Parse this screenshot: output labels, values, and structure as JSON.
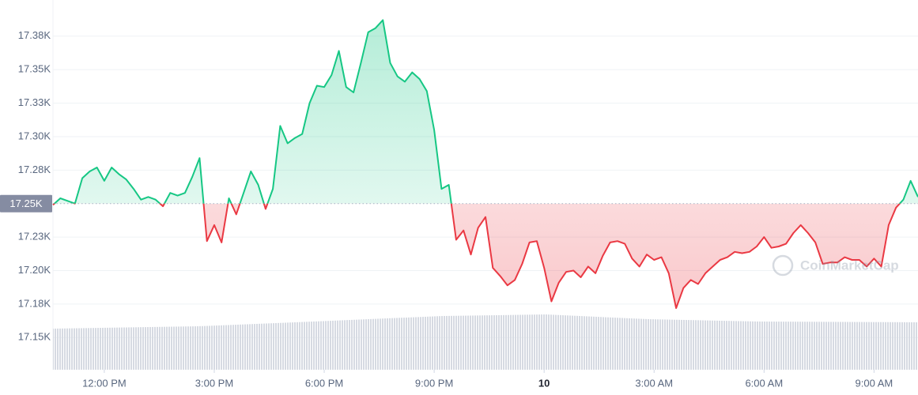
{
  "chart_data": {
    "type": "line",
    "watermark": "CoinMarketCap",
    "up_color": "#16c784",
    "down_color": "#ea3943",
    "baseline": {
      "value": 17250,
      "label": "17.25K"
    },
    "xlim": [
      10.6,
      34.2
    ],
    "xticks": [
      {
        "value": 12,
        "label": "12:00 PM"
      },
      {
        "value": 15,
        "label": "3:00 PM"
      },
      {
        "value": 18,
        "label": "6:00 PM"
      },
      {
        "value": 21,
        "label": "9:00 PM"
      },
      {
        "value": 24,
        "label": "10"
      },
      {
        "value": 27,
        "label": "3:00 AM"
      },
      {
        "value": 30,
        "label": "6:00 AM"
      },
      {
        "value": 33,
        "label": "9:00 AM"
      }
    ],
    "ylim": [
      17126,
      17402
    ],
    "yticks": [
      {
        "value": 17150,
        "label": "17.15K"
      },
      {
        "value": 17175,
        "label": "17.18K"
      },
      {
        "value": 17200,
        "label": "17.20K"
      },
      {
        "value": 17225,
        "label": "17.23K"
      },
      {
        "value": 17275,
        "label": "17.28K"
      },
      {
        "value": 17300,
        "label": "17.30K"
      },
      {
        "value": 17325,
        "label": "17.33K"
      },
      {
        "value": 17350,
        "label": "17.35K"
      },
      {
        "value": 17375,
        "label": "17.38K"
      }
    ],
    "grid": true,
    "x": [
      10.6,
      10.8,
      11,
      11.2,
      11.4,
      11.6,
      11.8,
      12,
      12.2,
      12.4,
      12.6,
      12.8,
      13,
      13.2,
      13.4,
      13.6,
      13.8,
      14,
      14.2,
      14.4,
      14.6,
      14.8,
      15,
      15.2,
      15.4,
      15.6,
      15.8,
      16,
      16.2,
      16.4,
      16.6,
      16.8,
      17,
      17.2,
      17.4,
      17.6,
      17.8,
      18,
      18.2,
      18.4,
      18.6,
      18.8,
      19,
      19.2,
      19.4,
      19.6,
      19.8,
      20,
      20.2,
      20.4,
      20.6,
      20.8,
      21,
      21.2,
      21.4,
      21.6,
      21.8,
      22,
      22.2,
      22.4,
      22.6,
      22.8,
      23,
      23.2,
      23.4,
      23.6,
      23.8,
      24,
      24.2,
      24.4,
      24.6,
      24.8,
      25,
      25.2,
      25.4,
      25.6,
      25.8,
      26,
      26.2,
      26.4,
      26.6,
      26.8,
      27,
      27.2,
      27.4,
      27.6,
      27.8,
      28,
      28.2,
      28.4,
      28.6,
      28.8,
      29,
      29.2,
      29.4,
      29.6,
      29.8,
      30,
      30.2,
      30.4,
      30.6,
      30.8,
      31,
      31.2,
      31.4,
      31.6,
      31.8,
      32,
      32.2,
      32.4,
      32.6,
      32.8,
      33,
      33.2,
      33.4,
      33.6,
      33.8,
      34,
      34.2
    ],
    "values": [
      17249,
      17254,
      17252,
      17250,
      17269,
      17274,
      17277,
      17267,
      17277,
      17272,
      17268,
      17261,
      17253,
      17255,
      17253,
      17248,
      17258,
      17256,
      17258,
      17270,
      17284,
      17222,
      17234,
      17221,
      17254,
      17242,
      17258,
      17274,
      17264,
      17246,
      17261,
      17308,
      17295,
      17299,
      17302,
      17325,
      17338,
      17337,
      17346,
      17364,
      17337,
      17333,
      17355,
      17378,
      17381,
      17387,
      17355,
      17345,
      17341,
      17348,
      17343,
      17334,
      17305,
      17261,
      17264,
      17223,
      17230,
      17212,
      17232,
      17240,
      17202,
      17196,
      17189,
      17193,
      17205,
      17221,
      17222,
      17202,
      17177,
      17191,
      17199,
      17200,
      17195,
      17203,
      17198,
      17211,
      17221,
      17222,
      17220,
      17209,
      17203,
      17212,
      17208,
      17210,
      17198,
      17172,
      17187,
      17193,
      17190,
      17198,
      17203,
      17208,
      17210,
      17214,
      17213,
      17214,
      17218,
      17225,
      17217,
      17218,
      17220,
      17228,
      17234,
      17228,
      17221,
      17205,
      17206,
      17206,
      17210,
      17208,
      17208,
      17203,
      17209,
      17203,
      17234,
      17247,
      17253,
      17267,
      17255
    ]
  }
}
